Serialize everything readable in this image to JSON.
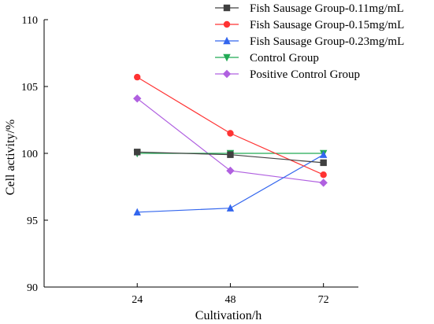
{
  "chart_data": {
    "type": "line",
    "xlabel": "Cultivation/h",
    "ylabel": "Cell activity/%",
    "x": [
      24,
      48,
      72
    ],
    "x_tick_labels": [
      "24",
      "48",
      "72"
    ],
    "xlim": [
      0,
      81
    ],
    "ylim": [
      90,
      110
    ],
    "y_ticks": [
      90,
      95,
      100,
      105,
      110
    ],
    "y_tick_labels": [
      "90",
      "95",
      "100",
      "105",
      "110"
    ],
    "grid": false,
    "legend_position": "top-right",
    "series": [
      {
        "name": "Fish Sausage Group-0.11mg/mL",
        "color": "#404040",
        "marker": "square",
        "values": [
          100.1,
          99.9,
          99.3
        ]
      },
      {
        "name": "Fish Sausage Group-0.15mg/mL",
        "color": "#ff3333",
        "marker": "circle",
        "values": [
          105.7,
          101.5,
          98.4
        ]
      },
      {
        "name": "Fish Sausage Group-0.23mg/mL",
        "color": "#3366ee",
        "marker": "triangle-up",
        "values": [
          95.6,
          95.9,
          99.9
        ]
      },
      {
        "name": "Control Group",
        "color": "#22aa55",
        "marker": "triangle-down",
        "values": [
          100.0,
          100.0,
          100.0
        ]
      },
      {
        "name": "Positive Control Group",
        "color": "#b060e0",
        "marker": "diamond",
        "values": [
          104.1,
          98.7,
          97.8
        ]
      }
    ]
  }
}
